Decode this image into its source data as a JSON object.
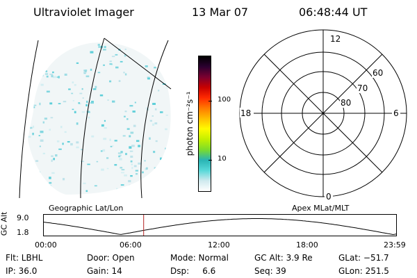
{
  "header": {
    "instrument": "Ultraviolet Imager",
    "date": "13 Mar 07",
    "time": "06:48:44 UT"
  },
  "colorbar": {
    "unit_label": "photon cm⁻²s⁻¹",
    "ticks": [
      {
        "label": "100",
        "value": 100
      },
      {
        "label": "10",
        "value": 10
      }
    ],
    "colors": [
      "#ffffff",
      "#cfe9ee",
      "#57d8d8",
      "#29b4b4",
      "#7ddc2a",
      "#c4f000",
      "#fffb00",
      "#ffbe00",
      "#ff7a00",
      "#ff2a00",
      "#c80000",
      "#7a0030",
      "#2b0030",
      "#000000"
    ]
  },
  "polar_grid": {
    "mlt_labels": [
      {
        "label": "12",
        "angle": 0
      },
      {
        "label": "6",
        "angle": 90
      },
      {
        "label": "0",
        "angle": 180
      },
      {
        "label": "18",
        "angle": 270
      }
    ],
    "lat_labels": [
      {
        "label": "60"
      },
      {
        "label": "70"
      },
      {
        "label": "80"
      }
    ]
  },
  "altitude_plot": {
    "left_label": "Geographic Lat/Lon",
    "right_label": "Apex MLat/MLT",
    "axis_label": "GC Alt",
    "y_ticks": [
      "9.0",
      "1.8"
    ],
    "x_ticks": [
      "00:00",
      "06:00",
      "12:00",
      "18:00",
      "23:59"
    ],
    "current_time_hours": 6.81
  },
  "status": {
    "flt": "Flt: LBHL",
    "ip": "IP: 36.0",
    "door": "Door: Open",
    "gain": "Gain: 14",
    "mode": "Mode: Normal",
    "dsp": "Dsp:     6.6",
    "gc_alt": "GC Alt: 3.9 Re",
    "seq": "Seq: 39",
    "glat": "GLat: −51.7",
    "glon": "GLon: 251.5"
  }
}
